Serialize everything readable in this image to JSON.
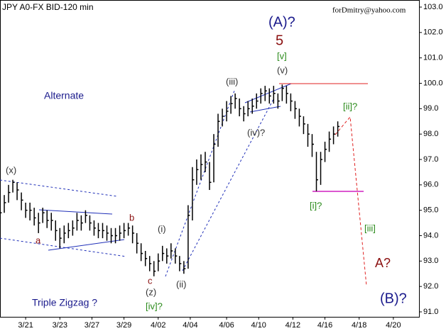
{
  "chart_data": {
    "type": "ohlc",
    "title": "JPY A0-FX BID-120 min",
    "watermark": "forDmitry@yahoo.com",
    "color": "#000000",
    "xlim": [
      0,
      98
    ],
    "xticks": [
      {
        "value": 6,
        "label": "3/21"
      },
      {
        "value": 14,
        "label": "3/23"
      },
      {
        "value": 21.5,
        "label": "3/27"
      },
      {
        "value": 29,
        "label": "3/29"
      },
      {
        "value": 37,
        "label": "4/02"
      },
      {
        "value": 44.5,
        "label": "4/04"
      },
      {
        "value": 53,
        "label": "4/06"
      },
      {
        "value": 60.5,
        "label": "4/10"
      },
      {
        "value": 68.5,
        "label": "4/12"
      },
      {
        "value": 76,
        "label": "4/16"
      },
      {
        "value": 84,
        "label": "4/18"
      },
      {
        "value": 92,
        "label": "4/20"
      }
    ],
    "ylim": [
      91,
      103
    ],
    "yticks": [
      {
        "value": 91,
        "label": "91.0"
      },
      {
        "value": 92,
        "label": "92.0"
      },
      {
        "value": 93,
        "label": "93.0"
      },
      {
        "value": 94,
        "label": "94.0"
      },
      {
        "value": 95,
        "label": "95.0"
      },
      {
        "value": 96,
        "label": "96.0"
      },
      {
        "value": 97,
        "label": "97.0"
      },
      {
        "value": 98,
        "label": "98.0"
      },
      {
        "value": 99,
        "label": "99.0"
      },
      {
        "value": 100,
        "label": "100.0"
      },
      {
        "value": 101,
        "label": "101.0"
      },
      {
        "value": 102,
        "label": "102.0"
      },
      {
        "value": 103,
        "label": "103.0"
      }
    ],
    "high": [
      95.2,
      95.6,
      96.0,
      96.2,
      96.1,
      95.7,
      95.3,
      95.3,
      95.1,
      94.9,
      95.1,
      95.0,
      94.9,
      94.6,
      94.3,
      94.4,
      94.5,
      94.6,
      94.9,
      94.8,
      95.0,
      94.8,
      94.6,
      94.5,
      94.5,
      94.4,
      94.3,
      94.3,
      94.4,
      94.5,
      94.5,
      94.4,
      94.1,
      93.7,
      93.4,
      93.2,
      93.0,
      93.3,
      93.6,
      93.5,
      93.7,
      93.5,
      93.2,
      93.0,
      95.2,
      96.7,
      97.0,
      97.2,
      97.3,
      96.9,
      98.0,
      98.8,
      99.0,
      99.3,
      99.5,
      99.6,
      99.4,
      99.1,
      99.3,
      99.4,
      99.6,
      99.8,
      99.9,
      99.8,
      99.9,
      99.6,
      99.95,
      99.9,
      99.6,
      99.3,
      99.0,
      98.7,
      98.4,
      98.0,
      97.3,
      97.3,
      97.7,
      98.1,
      98.3,
      98.5
    ],
    "low": [
      94.6,
      94.9,
      95.3,
      95.7,
      95.4,
      95.0,
      94.7,
      94.6,
      94.4,
      94.1,
      94.5,
      94.3,
      94.2,
      93.8,
      93.5,
      93.7,
      93.9,
      94.0,
      94.2,
      94.2,
      94.5,
      94.2,
      94.0,
      93.9,
      93.9,
      93.8,
      93.7,
      93.7,
      93.8,
      93.9,
      94.0,
      93.7,
      93.3,
      93.0,
      92.8,
      92.6,
      92.4,
      92.6,
      93.0,
      92.9,
      93.1,
      92.9,
      92.6,
      92.5,
      92.7,
      94.6,
      96.0,
      96.2,
      96.5,
      95.8,
      96.1,
      97.5,
      98.3,
      98.5,
      98.8,
      99.0,
      98.7,
      98.5,
      98.7,
      98.8,
      99.0,
      99.2,
      99.3,
      99.2,
      99.2,
      99.0,
      99.3,
      99.2,
      98.9,
      98.6,
      98.3,
      98.0,
      97.5,
      97.1,
      95.75,
      96.0,
      96.9,
      97.3,
      97.6,
      97.9
    ],
    "close": [
      94.9,
      95.3,
      95.7,
      96.1,
      95.8,
      95.4,
      95.0,
      95.0,
      94.7,
      94.5,
      94.9,
      94.6,
      94.6,
      94.2,
      93.9,
      94.1,
      94.2,
      94.3,
      94.6,
      94.5,
      94.8,
      94.5,
      94.3,
      94.2,
      94.2,
      94.1,
      94.0,
      94.0,
      94.1,
      94.2,
      94.3,
      94.1,
      93.7,
      93.3,
      93.1,
      92.9,
      92.6,
      93.0,
      93.3,
      93.2,
      93.4,
      93.2,
      92.9,
      92.7,
      94.8,
      96.2,
      96.6,
      96.8,
      96.9,
      96.1,
      97.6,
      98.5,
      98.7,
      98.9,
      99.2,
      99.4,
      99.0,
      98.8,
      99.0,
      99.1,
      99.3,
      99.6,
      99.7,
      99.5,
      99.6,
      99.3,
      99.8,
      99.6,
      99.3,
      99.0,
      98.7,
      98.4,
      98.0,
      97.6,
      96.2,
      97.0,
      97.4,
      97.8,
      98.0,
      98.3
    ],
    "annotations": [
      "(A)?",
      "5",
      "[v]",
      "(v)",
      "(iii)",
      "(iv)?",
      "[ii]?",
      "[i]?",
      "[iii]",
      "A?",
      "(B)?",
      "(x)",
      "a",
      "b",
      "c",
      "(z)",
      "[iv]?",
      "(i)",
      "(ii)",
      "Alternate",
      "Triple Zigzag ?"
    ]
  }
}
